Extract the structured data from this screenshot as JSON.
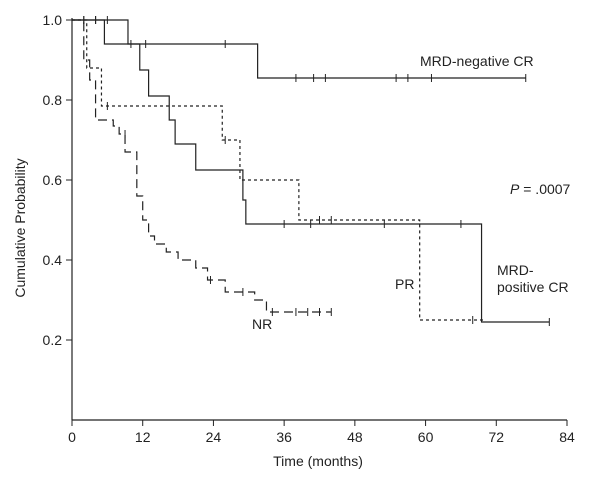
{
  "chart_data": {
    "type": "line",
    "subtype": "kaplan-meier",
    "xlabel": "Time (months)",
    "ylabel": "Cumulative Probability",
    "xlim": [
      0,
      84
    ],
    "ylim": [
      0,
      1.0
    ],
    "xticks": [
      0,
      12,
      24,
      36,
      48,
      60,
      72,
      84
    ],
    "yticks": [
      0.2,
      0.4,
      0.6,
      0.8,
      1.0
    ],
    "grid": false,
    "annotation": {
      "prefix": "P",
      "text": " = .0007"
    },
    "series": [
      {
        "name": "MRD-negative CR",
        "label_lines": [
          "MRD-negative CR"
        ],
        "dash": "solid",
        "steps": [
          [
            0,
            1.0
          ],
          [
            5.5,
            0.94
          ],
          [
            31.5,
            0.855
          ],
          [
            77,
            0.855
          ]
        ],
        "censored": [
          [
            2,
            1.0
          ],
          [
            4,
            1.0
          ],
          [
            6,
            1.0
          ],
          [
            12.5,
            0.94
          ],
          [
            26,
            0.94
          ],
          [
            38,
            0.855
          ],
          [
            41,
            0.855
          ],
          [
            43,
            0.855
          ],
          [
            55,
            0.855
          ],
          [
            57,
            0.855
          ],
          [
            61,
            0.855
          ],
          [
            77,
            0.855
          ]
        ]
      },
      {
        "name": "MRD-positive CR",
        "label_lines": [
          "MRD-",
          "positive CR"
        ],
        "dash": "solid",
        "steps": [
          [
            0,
            1.0
          ],
          [
            9.5,
            0.94
          ],
          [
            11.5,
            0.875
          ],
          [
            13,
            0.81
          ],
          [
            16.5,
            0.75
          ],
          [
            17.5,
            0.69
          ],
          [
            21,
            0.625
          ],
          [
            29,
            0.55
          ],
          [
            29.5,
            0.49
          ],
          [
            69.5,
            0.245
          ],
          [
            81,
            0.245
          ]
        ],
        "censored": [
          [
            2,
            1.0
          ],
          [
            10,
            0.94
          ],
          [
            36,
            0.49
          ],
          [
            40.5,
            0.49
          ],
          [
            53,
            0.49
          ],
          [
            66,
            0.49
          ],
          [
            81,
            0.245
          ]
        ]
      },
      {
        "name": "PR",
        "label_lines": [
          "PR"
        ],
        "dash": "dotted",
        "steps": [
          [
            0,
            1.0
          ],
          [
            2.5,
            0.88
          ],
          [
            5,
            0.785
          ],
          [
            25.5,
            0.7
          ],
          [
            28.5,
            0.6
          ],
          [
            38.5,
            0.5
          ],
          [
            59,
            0.25
          ],
          [
            70,
            0.25
          ]
        ],
        "censored": [
          [
            4,
            1.0
          ],
          [
            6,
            0.785
          ],
          [
            26,
            0.7
          ],
          [
            42,
            0.5
          ],
          [
            44,
            0.5
          ],
          [
            68,
            0.25
          ]
        ]
      },
      {
        "name": "NR",
        "label_lines": [
          "NR"
        ],
        "dash": "dashed",
        "steps": [
          [
            0,
            1.0
          ],
          [
            2,
            0.9
          ],
          [
            3,
            0.85
          ],
          [
            4,
            0.75
          ],
          [
            7,
            0.735
          ],
          [
            8,
            0.715
          ],
          [
            9,
            0.67
          ],
          [
            11,
            0.56
          ],
          [
            12,
            0.5
          ],
          [
            13,
            0.46
          ],
          [
            14,
            0.44
          ],
          [
            16,
            0.42
          ],
          [
            18,
            0.4
          ],
          [
            21,
            0.38
          ],
          [
            23,
            0.35
          ],
          [
            26,
            0.32
          ],
          [
            31,
            0.3
          ],
          [
            33,
            0.27
          ],
          [
            44,
            0.27
          ]
        ],
        "censored": [
          [
            4,
            1.0
          ],
          [
            9,
            0.715
          ],
          [
            23.5,
            0.35
          ],
          [
            29,
            0.32
          ],
          [
            34,
            0.27
          ],
          [
            38,
            0.27
          ],
          [
            40,
            0.27
          ],
          [
            42,
            0.27
          ],
          [
            44,
            0.27
          ]
        ]
      }
    ]
  }
}
